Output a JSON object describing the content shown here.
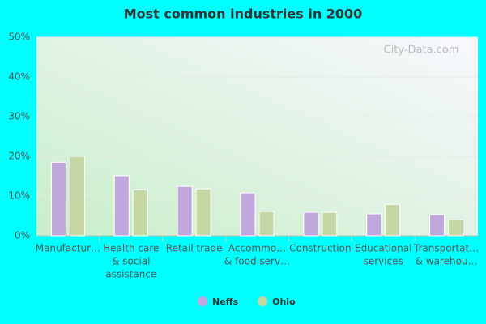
{
  "chart_data": {
    "type": "bar",
    "title": "Most common industries in 2000",
    "categories": [
      [
        "Manufactur…"
      ],
      [
        "Health care",
        "& social",
        "assistance"
      ],
      [
        "Retail trade"
      ],
      [
        "Accommo…",
        "& food serv…"
      ],
      [
        "Construction"
      ],
      [
        "Educational",
        "services"
      ],
      [
        "Transportat…",
        "& warehou…"
      ]
    ],
    "series": [
      {
        "name": "Neffs",
        "color": "#c0a8dc",
        "values": [
          18.5,
          15.1,
          12.4,
          10.8,
          5.9,
          5.5,
          5.3
        ]
      },
      {
        "name": "Ohio",
        "color": "#c5d8a4",
        "values": [
          20.0,
          11.6,
          11.8,
          6.1,
          5.9,
          7.9,
          4.0
        ]
      }
    ],
    "ylim": [
      0,
      50
    ],
    "yticks": [
      {
        "value": 0,
        "label": "0%"
      },
      {
        "value": 10,
        "label": "10%"
      },
      {
        "value": 20,
        "label": "20%"
      },
      {
        "value": 30,
        "label": "30%"
      },
      {
        "value": 40,
        "label": "40%"
      },
      {
        "value": 50,
        "label": "50%"
      }
    ],
    "grid": true,
    "legend": "bottom",
    "watermark": "City-Data.com"
  }
}
